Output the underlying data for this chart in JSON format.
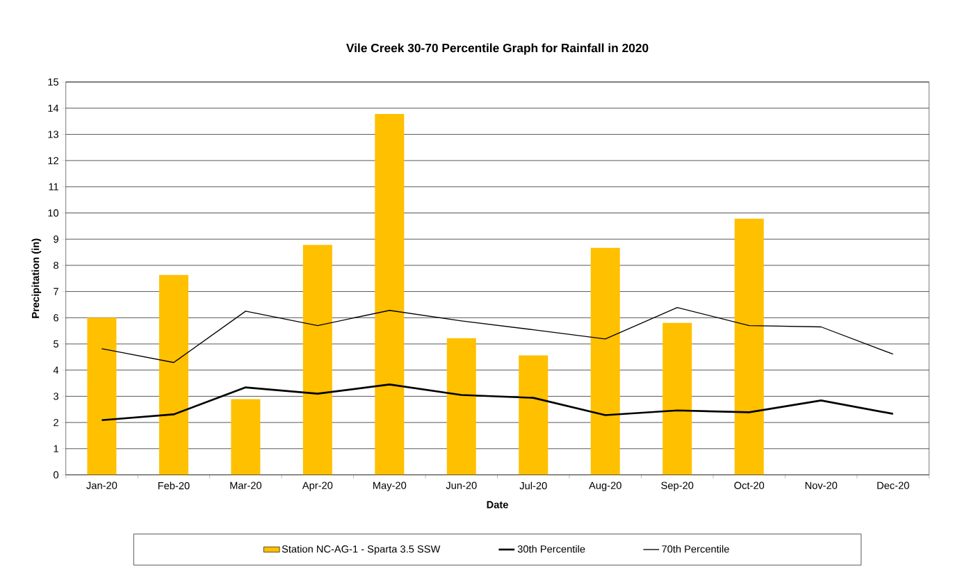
{
  "chart_data": {
    "type": "bar",
    "title": "Vile Creek 30-70 Percentile Graph for Rainfall in 2020",
    "xlabel": "Date",
    "ylabel": "Precipitation (in)",
    "categories": [
      "Jan-20",
      "Feb-20",
      "Mar-20",
      "Apr-20",
      "May-20",
      "Jun-20",
      "Jul-20",
      "Aug-20",
      "Sep-20",
      "Oct-20",
      "Nov-20",
      "Dec-20"
    ],
    "series": [
      {
        "name": "Station NC-AG-1 - Sparta 3.5 SSW",
        "color": "#ffc000",
        "values": [
          6.0,
          7.63,
          2.89,
          8.78,
          13.78,
          5.22,
          4.56,
          8.67,
          5.8,
          9.78,
          null,
          null
        ]
      },
      {
        "name": "30th Percentile",
        "type": "line",
        "color": "#000000",
        "values": [
          2.09,
          2.31,
          3.34,
          3.1,
          3.45,
          3.05,
          2.94,
          2.28,
          2.46,
          2.39,
          2.84,
          2.33
        ]
      },
      {
        "name": "70th Percentile",
        "type": "line",
        "color": "#000000",
        "values": [
          4.82,
          4.29,
          6.25,
          5.7,
          6.28,
          5.88,
          5.54,
          5.19,
          6.39,
          5.7,
          5.65,
          4.61
        ]
      }
    ],
    "ylim": [
      0,
      15
    ],
    "yticks": [
      0,
      1,
      2,
      3,
      4,
      5,
      6,
      7,
      8,
      9,
      10,
      11,
      12,
      13,
      14,
      15
    ],
    "grid": "y",
    "legend": "bottom"
  }
}
